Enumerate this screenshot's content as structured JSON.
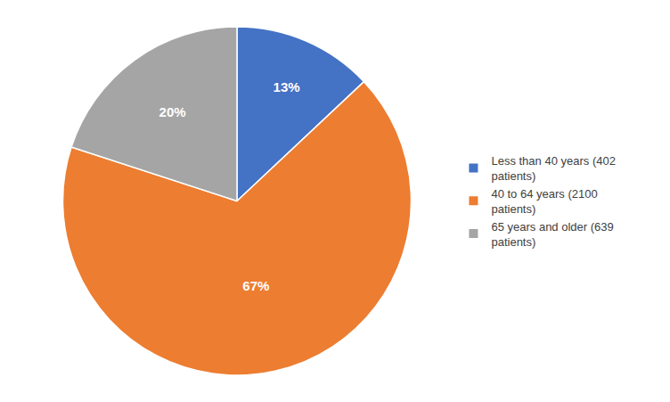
{
  "chart_data": {
    "type": "pie",
    "categories": [
      "Less than 40 years (402\npatients)",
      "40 to 64 years (2100\npatients)",
      "65 years and older (639\npatients)"
    ],
    "values": [
      13,
      67,
      20
    ],
    "value_labels": [
      "13%",
      "67%",
      "20%"
    ],
    "colors": [
      "#4472c4",
      "#ed7d31",
      "#a5a5a5"
    ],
    "data_labels": true,
    "legend": "right"
  }
}
